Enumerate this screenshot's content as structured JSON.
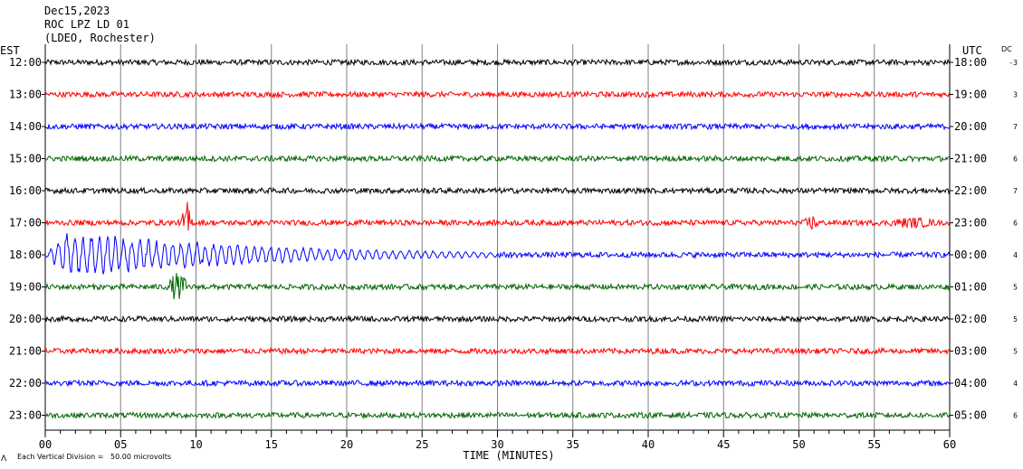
{
  "header": {
    "date": "Dec15,2023",
    "station": "ROC LPZ LD 01",
    "network": "(LDEO, Rochester)"
  },
  "left_timezone": "EST",
  "right_timezone": "UTC",
  "dc_label": "DC",
  "footer": {
    "scale_note": "Each Vertical Division =   50.00 microvolts",
    "corner_mark": "Λ"
  },
  "chart_data": {
    "type": "line",
    "title": "ROC LPZ LD 01",
    "xlabel": "TIME (MINUTES)",
    "xlim": [
      0,
      60
    ],
    "x_ticks": [
      "00",
      "05",
      "10",
      "15",
      "20",
      "25",
      "30",
      "35",
      "40",
      "45",
      "50",
      "55",
      "60"
    ],
    "rows": [
      {
        "est": "12:00",
        "utc": "18:00",
        "dc": "-3",
        "color": "#000000",
        "amplitude": 3
      },
      {
        "est": "13:00",
        "utc": "19:00",
        "dc": "3",
        "color": "#ff0000",
        "amplitude": 3
      },
      {
        "est": "14:00",
        "utc": "20:00",
        "dc": "7",
        "color": "#0000ff",
        "amplitude": 3
      },
      {
        "est": "15:00",
        "utc": "21:00",
        "dc": "6",
        "color": "#006400",
        "amplitude": 3
      },
      {
        "est": "16:00",
        "utc": "22:00",
        "dc": "7",
        "color": "#000000",
        "amplitude": 3
      },
      {
        "est": "17:00",
        "utc": "23:00",
        "dc": "6",
        "color": "#ff0000",
        "amplitude": 3
      },
      {
        "est": "18:00",
        "utc": "00:00",
        "dc": "4",
        "color": "#0000ff",
        "amplitude": 3
      },
      {
        "est": "19:00",
        "utc": "01:00",
        "dc": "5",
        "color": "#006400",
        "amplitude": 3
      },
      {
        "est": "20:00",
        "utc": "02:00",
        "dc": "5",
        "color": "#000000",
        "amplitude": 3
      },
      {
        "est": "21:00",
        "utc": "03:00",
        "dc": "5",
        "color": "#ff0000",
        "amplitude": 3
      },
      {
        "est": "22:00",
        "utc": "04:00",
        "dc": "4",
        "color": "#0000ff",
        "amplitude": 3
      },
      {
        "est": "23:00",
        "utc": "05:00",
        "dc": "6",
        "color": "#006400",
        "amplitude": 3
      }
    ],
    "events": [
      {
        "row": 5,
        "start_min": 9.0,
        "end_min": 9.8,
        "peak": 25
      },
      {
        "row": 5,
        "start_min": 50.2,
        "end_min": 51.5,
        "peak": 9
      },
      {
        "row": 5,
        "start_min": 55.0,
        "end_min": 60.0,
        "peak": 6
      },
      {
        "row": 6,
        "start_min": 0.0,
        "end_min": 30.0,
        "peak": 30
      },
      {
        "row": 7,
        "start_min": 8.0,
        "end_min": 9.6,
        "peak": 16
      }
    ],
    "grid": true
  }
}
